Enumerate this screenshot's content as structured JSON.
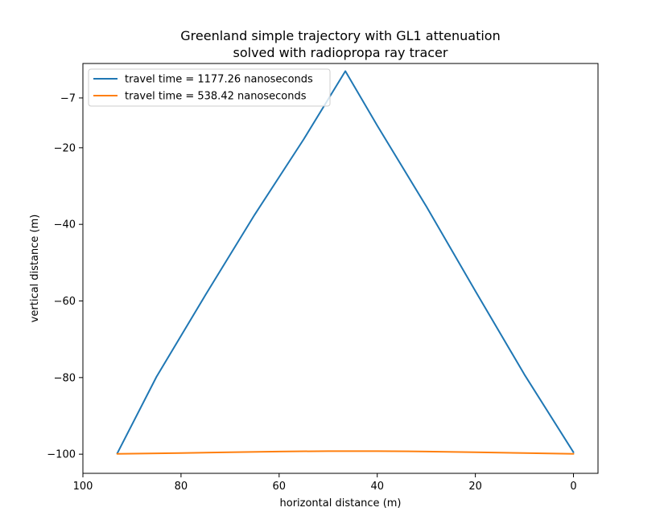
{
  "chart_data": {
    "type": "line",
    "title": "Greenland simple trajectory with GL1 attenuation\nsolved with radiopropa ray tracer",
    "xlabel": "horizontal distance (m)",
    "ylabel": "vertical distance (m)",
    "xlim": [
      100,
      -5
    ],
    "ylim": [
      -105,
      2
    ],
    "xticks": [
      100,
      80,
      60,
      40,
      20,
      0
    ],
    "yticks": [
      -7,
      -20,
      -40,
      -60,
      -80,
      -100
    ],
    "xtick_labels": [
      "100",
      "80",
      "60",
      "40",
      "20",
      "0"
    ],
    "ytick_labels": [
      "−7",
      "−20",
      "−40",
      "−60",
      "−80",
      "−100"
    ],
    "grid": false,
    "legend_position": "top-left",
    "series": [
      {
        "name": "travel time = 1177.26 nanoseconds",
        "color": "#1f77b4",
        "x": [
          0,
          10,
          20,
          30,
          40,
          46.5,
          55,
          65,
          75,
          85,
          93
        ],
        "y": [
          -99.5,
          -79.2,
          -57.4,
          -35.3,
          -14.2,
          0,
          -17.8,
          -37.5,
          -58.4,
          -79.8,
          -99.8
        ]
      },
      {
        "name": "travel time = 538.42 nanoseconds",
        "color": "#ff7f0e",
        "x": [
          0,
          10,
          20,
          30,
          40,
          50,
          60,
          70,
          80,
          93
        ],
        "y": [
          -99.9,
          -99.7,
          -99.5,
          -99.3,
          -99.2,
          -99.2,
          -99.3,
          -99.5,
          -99.7,
          -99.9
        ]
      }
    ]
  }
}
